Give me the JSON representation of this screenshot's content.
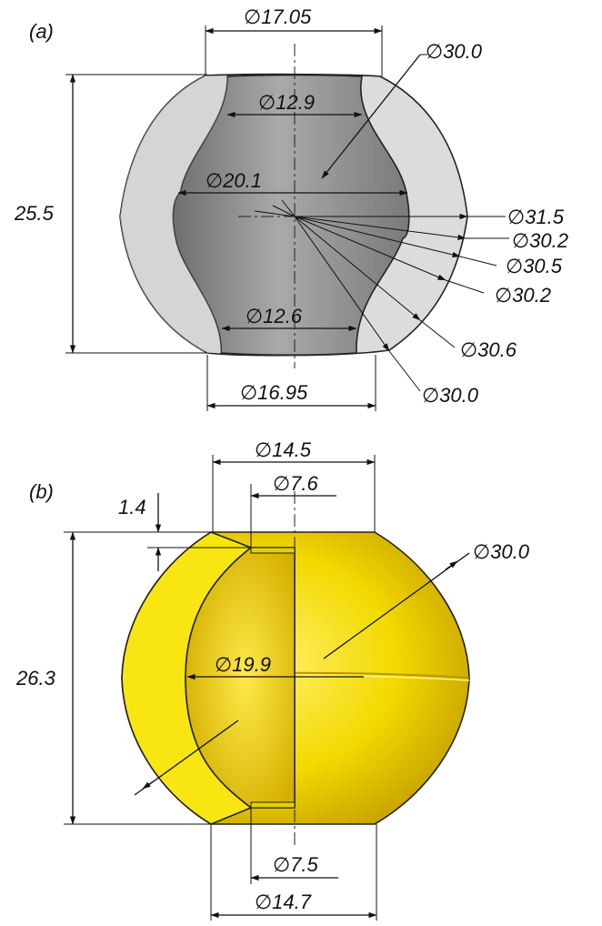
{
  "panel_a": {
    "label": "(a)",
    "dims": {
      "top_width": "∅17.05",
      "neck_top": "∅12.9",
      "inner": "∅20.1",
      "neck_bottom": "∅12.6",
      "bottom_width": "∅16.95",
      "height": "25.5",
      "sphere_top": "∅30.0",
      "r1": "∅31.5",
      "r2": "∅30.2",
      "r3": "∅30.5",
      "r4": "∅30.2",
      "r5": "∅30.6",
      "sphere_bottom": "∅30.0"
    },
    "colors": {
      "shell": "#d9d9d9",
      "cavity": "#8e8e8e"
    }
  },
  "panel_b": {
    "label": "(b)",
    "dims": {
      "top_width": "∅14.5",
      "neck_top": "∅7.6",
      "step": "1.4",
      "height": "26.3",
      "sphere": "∅30.0",
      "inner": "∅19.9",
      "neck_bottom": "∅7.5",
      "bottom_width": "∅14.7"
    },
    "colors": {
      "body": "#f2dc00",
      "section": "#f7e81a"
    }
  }
}
